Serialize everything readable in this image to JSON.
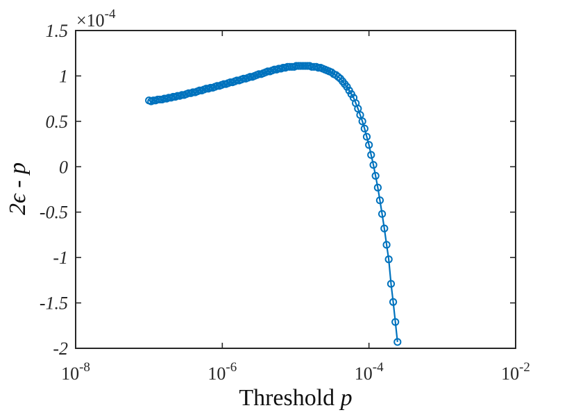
{
  "chart_data": {
    "type": "line",
    "xscale": "log",
    "xlim": [
      1e-08,
      0.01
    ],
    "ylim": [
      -2,
      1.5
    ],
    "y_multiplier_label": "×10",
    "y_multiplier_exponent": "-4",
    "xlabel_text": "Threshold ",
    "xlabel_var": "p",
    "ylabel": "2ϵ - p",
    "grid": false,
    "legend": "none",
    "color": "#0072BD",
    "marker": "circle",
    "xtick_labels": [
      {
        "base": "10",
        "exp": "-8"
      },
      {
        "base": "10",
        "exp": "-6"
      },
      {
        "base": "10",
        "exp": "-4"
      },
      {
        "base": "10",
        "exp": "-2"
      }
    ],
    "ytick_labels": [
      "1.5",
      "1",
      "0.5",
      "0",
      "-0.5",
      "-1",
      "-1.5",
      "-2"
    ],
    "series": [
      {
        "points": [
          [
            1e-07,
            0.73
          ],
          [
            1.07e-07,
            0.72
          ],
          [
            1.15e-07,
            0.73
          ],
          [
            1.23e-07,
            0.73
          ],
          [
            1.32e-07,
            0.74
          ],
          [
            1.41e-07,
            0.74
          ],
          [
            1.51e-07,
            0.74
          ],
          [
            1.62e-07,
            0.75
          ],
          [
            1.74e-07,
            0.75
          ],
          [
            1.86e-07,
            0.76
          ],
          [
            2e-07,
            0.76
          ],
          [
            2.14e-07,
            0.77
          ],
          [
            2.29e-07,
            0.77
          ],
          [
            2.45e-07,
            0.78
          ],
          [
            2.63e-07,
            0.78
          ],
          [
            2.82e-07,
            0.79
          ],
          [
            3.02e-07,
            0.79
          ],
          [
            3.24e-07,
            0.8
          ],
          [
            3.47e-07,
            0.81
          ],
          [
            3.72e-07,
            0.81
          ],
          [
            3.98e-07,
            0.82
          ],
          [
            4.27e-07,
            0.82
          ],
          [
            4.57e-07,
            0.83
          ],
          [
            4.9e-07,
            0.84
          ],
          [
            5.25e-07,
            0.84
          ],
          [
            5.62e-07,
            0.85
          ],
          [
            6.03e-07,
            0.86
          ],
          [
            6.46e-07,
            0.86
          ],
          [
            6.92e-07,
            0.87
          ],
          [
            7.41e-07,
            0.87
          ],
          [
            7.94e-07,
            0.88
          ],
          [
            8.51e-07,
            0.89
          ],
          [
            9.12e-07,
            0.89
          ],
          [
            9.77e-07,
            0.9
          ],
          [
            1.05e-06,
            0.91
          ],
          [
            1.12e-06,
            0.91
          ],
          [
            1.2e-06,
            0.92
          ],
          [
            1.29e-06,
            0.93
          ],
          [
            1.38e-06,
            0.93
          ],
          [
            1.48e-06,
            0.94
          ],
          [
            1.58e-06,
            0.95
          ],
          [
            1.7e-06,
            0.95
          ],
          [
            1.82e-06,
            0.96
          ],
          [
            1.95e-06,
            0.97
          ],
          [
            2.09e-06,
            0.97
          ],
          [
            2.24e-06,
            0.98
          ],
          [
            2.4e-06,
            0.99
          ],
          [
            2.57e-06,
            0.99
          ],
          [
            2.75e-06,
            1.0
          ],
          [
            2.95e-06,
            1.01
          ],
          [
            3.16e-06,
            1.02
          ],
          [
            3.39e-06,
            1.02
          ],
          [
            3.63e-06,
            1.03
          ],
          [
            3.89e-06,
            1.04
          ],
          [
            4.17e-06,
            1.05
          ],
          [
            4.47e-06,
            1.05
          ],
          [
            4.79e-06,
            1.06
          ],
          [
            5.13e-06,
            1.07
          ],
          [
            5.5e-06,
            1.07
          ],
          [
            5.89e-06,
            1.08
          ],
          [
            6.31e-06,
            1.08
          ],
          [
            6.76e-06,
            1.09
          ],
          [
            7.24e-06,
            1.09
          ],
          [
            7.76e-06,
            1.1
          ],
          [
            8.32e-06,
            1.1
          ],
          [
            8.91e-06,
            1.1
          ],
          [
            9.55e-06,
            1.1
          ],
          [
            1.02e-05,
            1.11
          ],
          [
            1.1e-05,
            1.11
          ],
          [
            1.17e-05,
            1.11
          ],
          [
            1.26e-05,
            1.11
          ],
          [
            1.35e-05,
            1.11
          ],
          [
            1.45e-05,
            1.11
          ],
          [
            1.55e-05,
            1.11
          ],
          [
            1.66e-05,
            1.1
          ],
          [
            1.78e-05,
            1.1
          ],
          [
            1.91e-05,
            1.1
          ],
          [
            2.04e-05,
            1.09
          ],
          [
            2.19e-05,
            1.09
          ],
          [
            2.34e-05,
            1.08
          ],
          [
            2.51e-05,
            1.07
          ],
          [
            2.69e-05,
            1.06
          ],
          [
            2.88e-05,
            1.05
          ],
          [
            3.09e-05,
            1.04
          ],
          [
            3.31e-05,
            1.02
          ],
          [
            3.55e-05,
            1.01
          ],
          [
            3.8e-05,
            0.99
          ],
          [
            4.07e-05,
            0.97
          ],
          [
            4.37e-05,
            0.94
          ],
          [
            4.68e-05,
            0.91
          ],
          [
            5.01e-05,
            0.88
          ],
          [
            5.37e-05,
            0.84
          ],
          [
            5.75e-05,
            0.8
          ],
          [
            6.17e-05,
            0.76
          ],
          [
            6.61e-05,
            0.7
          ],
          [
            7.08e-05,
            0.64
          ],
          [
            7.59e-05,
            0.57
          ],
          [
            8.13e-05,
            0.5
          ],
          [
            8.71e-05,
            0.42
          ],
          [
            9.33e-05,
            0.33
          ],
          [
            0.0001,
            0.24
          ],
          [
            0.000107,
            0.13
          ],
          [
            0.000115,
            0.02
          ],
          [
            0.000123,
            -0.1
          ],
          [
            0.000132,
            -0.23
          ],
          [
            0.000141,
            -0.37
          ],
          [
            0.000151,
            -0.52
          ],
          [
            0.000162,
            -0.68
          ],
          [
            0.000174,
            -0.86
          ],
          [
            0.000186,
            -1.02
          ],
          [
            0.0002,
            -1.29
          ],
          [
            0.000214,
            -1.49
          ],
          [
            0.000229,
            -1.71
          ],
          [
            0.000245,
            -1.93
          ]
        ]
      }
    ]
  }
}
